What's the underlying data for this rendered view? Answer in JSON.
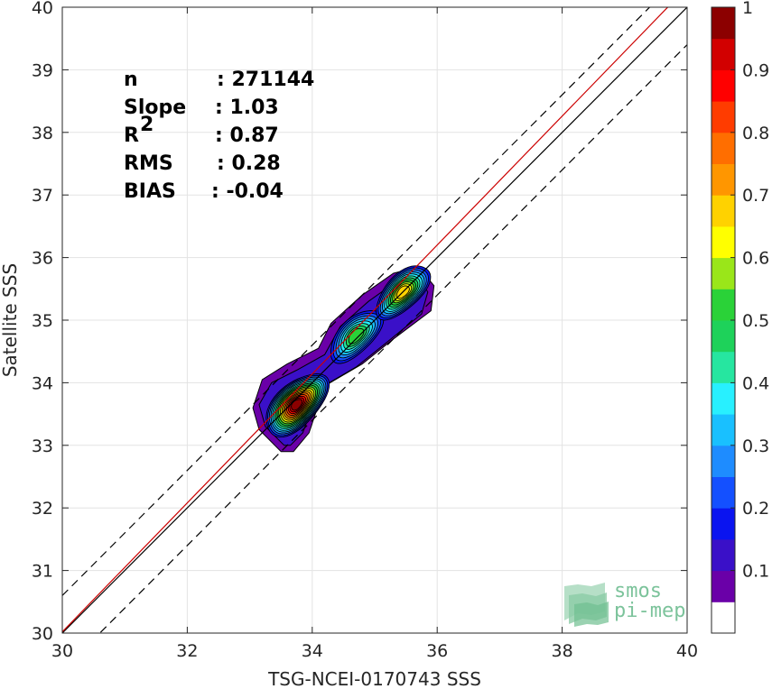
{
  "chart_data": {
    "type": "heatmap",
    "subtype": "density-contour-scatter",
    "xlabel": "TSG-NCEI-0170743 SSS",
    "ylabel": "Satellite SSS",
    "xlim": [
      30,
      40
    ],
    "ylim": [
      30,
      40
    ],
    "x_ticks": [
      "30",
      "32",
      "34",
      "36",
      "38",
      "40"
    ],
    "y_ticks": [
      "30",
      "31",
      "32",
      "33",
      "34",
      "35",
      "36",
      "37",
      "38",
      "39",
      "40"
    ],
    "grid": true,
    "stats": [
      {
        "label": "n",
        "value": ": 271144"
      },
      {
        "label": "Slope",
        "value": ": 1.03"
      },
      {
        "label": "R",
        "sup": "2",
        "value": ": 0.87"
      },
      {
        "label": "RMS",
        "value": ": 0.28"
      },
      {
        "label": "BIAS",
        "value": ": -0.04"
      }
    ],
    "lines": {
      "identity": {
        "color": "#000000",
        "points": [
          [
            30,
            30
          ],
          [
            40,
            40
          ]
        ]
      },
      "regression": {
        "color": "#cc0000",
        "points": [
          [
            30,
            30.02
          ],
          [
            40,
            40.32
          ]
        ]
      },
      "upper_bound": {
        "color": "#000000",
        "dash": true,
        "points": [
          [
            30,
            30.6
          ],
          [
            40,
            40.6
          ]
        ]
      },
      "lower_bound": {
        "color": "#000000",
        "dash": true,
        "points": [
          [
            30,
            29.4
          ],
          [
            40,
            39.4
          ]
        ]
      }
    },
    "density_peaks": [
      {
        "x": 33.75,
        "y": 33.65,
        "value": 1.0
      },
      {
        "x": 34.7,
        "y": 34.75,
        "value": 0.5
      },
      {
        "x": 35.45,
        "y": 35.45,
        "value": 0.7
      }
    ],
    "colorbar": {
      "range": [
        0,
        1
      ],
      "ticks": [
        "0.1",
        "0.2",
        "0.3",
        "0.4",
        "0.5",
        "0.6",
        "0.7",
        "0.8",
        "0.9",
        "1"
      ],
      "colors": [
        "#ffffff",
        "#6a00a8",
        "#3a10c8",
        "#0a14f0",
        "#1450ff",
        "#1e8cff",
        "#19c0ff",
        "#28f0ff",
        "#26e6a0",
        "#1ed25a",
        "#2ad238",
        "#9ae619",
        "#ffff00",
        "#ffd200",
        "#ff9600",
        "#ff6e00",
        "#ff3c00",
        "#ff0000",
        "#d20000",
        "#8c0000"
      ]
    },
    "logo": {
      "line1": "smos",
      "line2": "pi-mep"
    }
  }
}
